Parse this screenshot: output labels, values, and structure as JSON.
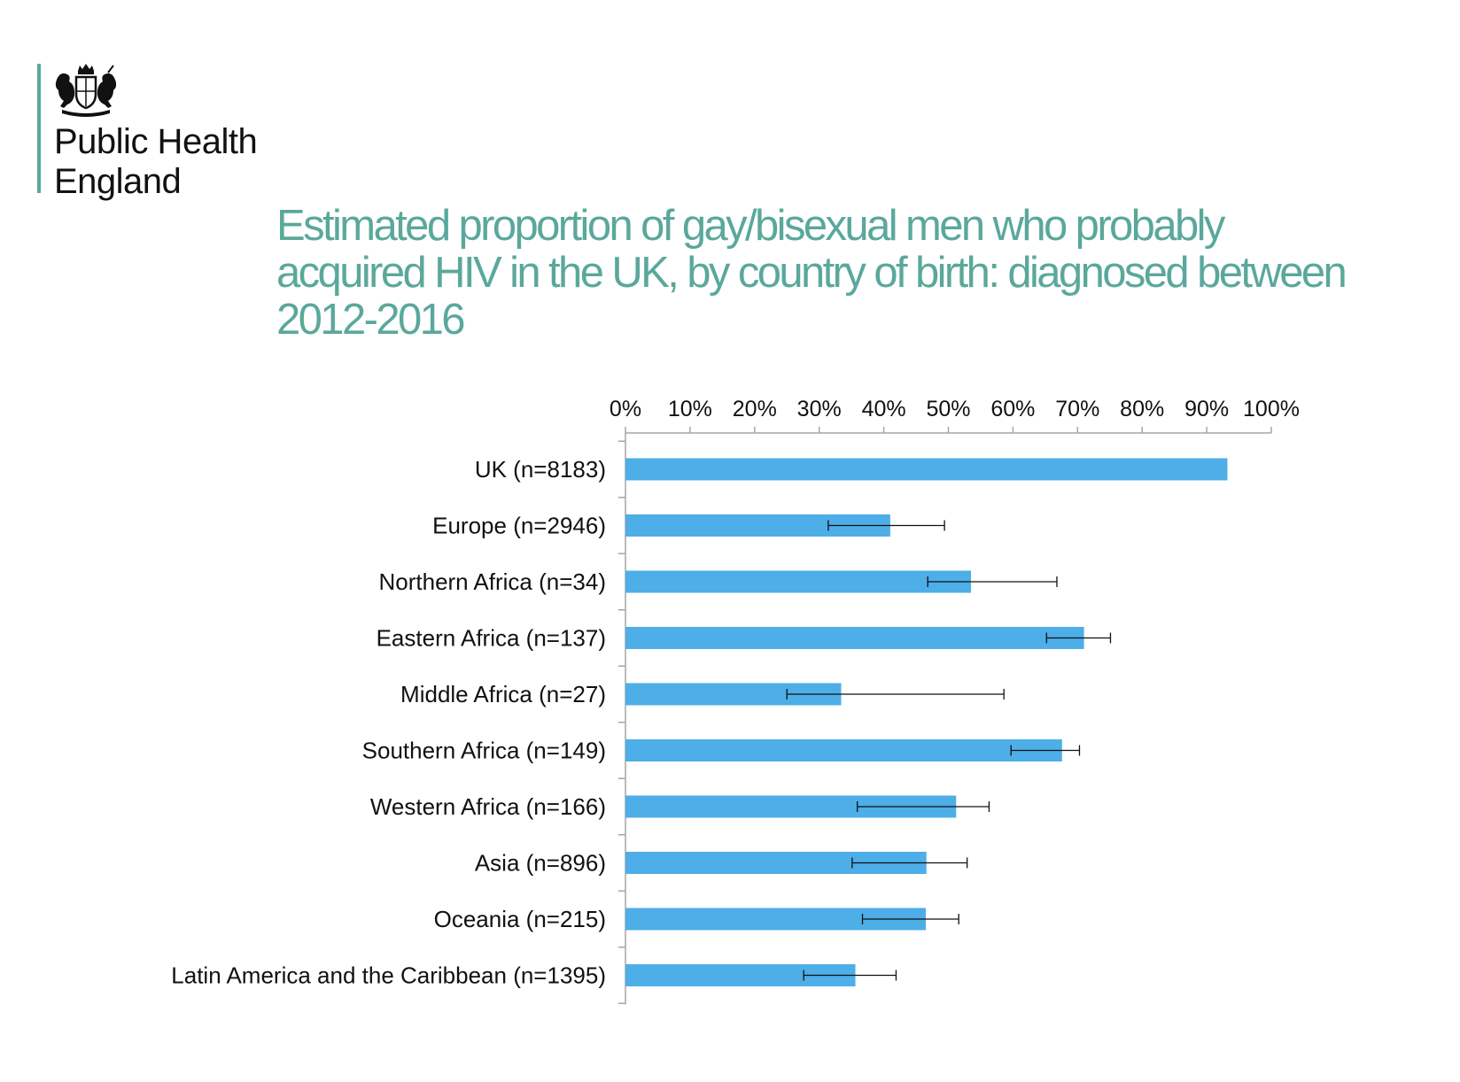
{
  "brand": {
    "name_line1": "Public Health",
    "name_line2": "England",
    "accent_color": "#5aa89b",
    "logo_icon": "royal-coat-of-arms-icon"
  },
  "title": {
    "line1": "Estimated proportion of gay/bisexual men who probably",
    "line2": "acquired HIV in the UK, by country of birth: diagnosed between",
    "line3": "2012-2016"
  },
  "chart_data": {
    "type": "bar",
    "orientation": "horizontal",
    "title": "Estimated proportion of gay/bisexual men who probably acquired HIV in the UK, by country of birth: diagnosed between 2012-2016",
    "categories": [
      "UK (n=8183)",
      "Europe (n=2946)",
      "Northern Africa (n=34)",
      "Eastern Africa (n=137)",
      "Middle Africa (n=27)",
      "Southern Africa (n=149)",
      "Western Africa (n=166)",
      "Asia (n=896)",
      "Oceania (n=215)",
      "Latin America and the Caribbean (n=1395)"
    ],
    "values": [
      93.2,
      41.0,
      53.5,
      71.0,
      33.4,
      67.6,
      51.2,
      46.6,
      46.5,
      35.6
    ],
    "error_low": [
      null,
      31.4,
      46.8,
      65.2,
      25.0,
      59.7,
      35.9,
      35.1,
      36.7,
      27.6
    ],
    "error_high": [
      null,
      49.4,
      66.8,
      75.1,
      58.6,
      70.3,
      56.3,
      52.9,
      51.6,
      41.9
    ],
    "xlim": [
      0,
      100
    ],
    "x_ticks": [
      "0%",
      "10%",
      "20%",
      "30%",
      "40%",
      "50%",
      "60%",
      "70%",
      "80%",
      "90%",
      "100%"
    ],
    "x_axis_position": "top",
    "grid": false,
    "legend": "none",
    "bar_color": "#4daee8",
    "error_bar_color": "#111111"
  }
}
